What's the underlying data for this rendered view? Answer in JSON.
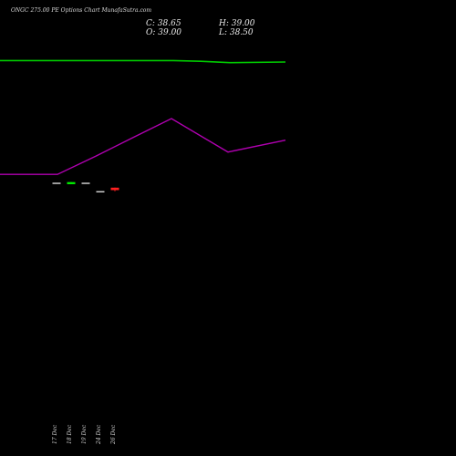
{
  "header": {
    "title": "ONGC 275.00  PE Options  Chart MunafaSutra.com",
    "close": "C: 38.65",
    "open": "O: 39.00",
    "high": "H: 39.00",
    "low": "L: 38.50"
  },
  "chart_data": {
    "type": "candlestick",
    "x_labels": [
      "17 Dec",
      "18 Dec",
      "19 Dec",
      "24 Dec",
      "26 Dec"
    ],
    "candles": [
      {
        "date": "17 Dec",
        "open": 39.7,
        "close": 39.7,
        "high": 39.7,
        "low": 39.7,
        "color": "#ffffff"
      },
      {
        "date": "18 Dec",
        "open": 39.5,
        "close": 39.8,
        "high": 39.8,
        "low": 39.5,
        "color": "#00ee00"
      },
      {
        "date": "19 Dec",
        "open": 39.7,
        "close": 39.7,
        "high": 39.7,
        "low": 39.7,
        "color": "#ffffff"
      },
      {
        "date": "24 Dec",
        "open": 38.5,
        "close": 38.5,
        "high": 38.5,
        "low": 38.5,
        "color": "#ffffff"
      },
      {
        "date": "26 Dec",
        "open": 39.0,
        "close": 38.65,
        "high": 39.0,
        "low": 38.5,
        "color": "#ff2020"
      }
    ],
    "ylim": [
      28,
      60
    ],
    "lines": [
      {
        "color": "#00cc00",
        "values": [
          57.2,
          57.2,
          57.2,
          57.2,
          57.2,
          57.1,
          56.9,
          57.0
        ]
      },
      {
        "color": "#b000b0",
        "values": [
          40.9,
          40.9,
          43.5,
          46.2,
          48.9,
          44.1,
          45.8
        ]
      }
    ],
    "colors": {
      "background": "#000000",
      "label": "#cccccc"
    }
  }
}
